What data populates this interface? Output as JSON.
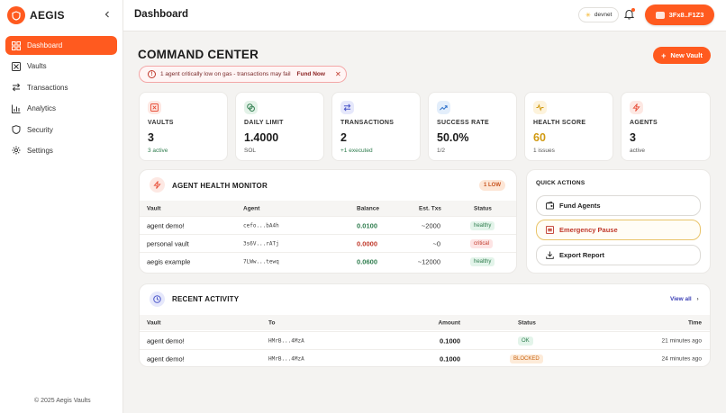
{
  "brand": {
    "name": "AEGIS"
  },
  "sidebar": {
    "items": [
      {
        "label": "Dashboard",
        "icon": "dashboard-icon",
        "active": true
      },
      {
        "label": "Vaults",
        "icon": "vault-icon"
      },
      {
        "label": "Transactions",
        "icon": "transfer-icon"
      },
      {
        "label": "Analytics",
        "icon": "chart-icon"
      },
      {
        "label": "Security",
        "icon": "shield-icon"
      },
      {
        "label": "Settings",
        "icon": "gear-icon"
      }
    ],
    "footer": "© 2025 Aegis Vaults"
  },
  "header": {
    "title": "Dashboard",
    "network": "devnet",
    "wallet": "3Fx8..F1Z3"
  },
  "main": {
    "title": "COMMAND CENTER",
    "new_vault_label": "New Vault",
    "alert": {
      "text": "1 agent critically low on gas - transactions may fail",
      "action": "Fund Now"
    }
  },
  "stats": [
    {
      "label": "VAULTS",
      "value": "3",
      "sub": "3 active",
      "icon": "vault-icon",
      "color": "#e8503a",
      "bg": "#fde8e3",
      "sub_color": "#2f7d4e"
    },
    {
      "label": "DAILY LIMIT",
      "value": "1.4000",
      "sub": "SOL",
      "icon": "coins-icon",
      "color": "#2f7d4e",
      "bg": "#e3f2e8",
      "sub_color": "#555555"
    },
    {
      "label": "TRANSACTIONS",
      "value": "2",
      "sub": "+1 executed",
      "icon": "transfer-icon",
      "color": "#4a56c9",
      "bg": "#e6e8fb",
      "sub_color": "#2f7d4e"
    },
    {
      "label": "SUCCESS RATE",
      "value": "50.0%",
      "sub": "1/2",
      "icon": "trend-up-icon",
      "color": "#2a6fc9",
      "bg": "#e3eefb",
      "sub_color": "#555555"
    },
    {
      "label": "HEALTH SCORE",
      "value": "60",
      "sub": "1 issues",
      "icon": "pulse-icon",
      "color": "#d19a12",
      "bg": "#fdf3dc",
      "sub_color": "#555555",
      "value_color": "#d19a12"
    },
    {
      "label": "AGENTS",
      "value": "3",
      "sub": "active",
      "icon": "bolt-icon",
      "color": "#e8503a",
      "bg": "#fde8e3",
      "sub_color": "#555555"
    }
  ],
  "health": {
    "title": "AGENT HEALTH MONITOR",
    "badge": "1 LOW",
    "columns": [
      "Vault",
      "Agent",
      "Balance",
      "Est. Txs",
      "Status"
    ],
    "rows": [
      {
        "vault": "agent demo!",
        "agent": "cefo...bA4h",
        "balance": "0.0100",
        "txs": "~2000",
        "status": "healthy",
        "balance_color": "#2f7d4e"
      },
      {
        "vault": "personal vault",
        "agent": "3s6V...rATj",
        "balance": "0.0000",
        "txs": "~0",
        "status": "critical",
        "balance_color": "#c0392b"
      },
      {
        "vault": "aegis example",
        "agent": "7LWw...tewq",
        "balance": "0.0600",
        "txs": "~12000",
        "status": "healthy",
        "balance_color": "#2f7d4e"
      }
    ]
  },
  "quick_actions": {
    "title": "QUICK ACTIONS",
    "items": [
      {
        "label": "Fund Agents",
        "icon": "wallet-icon"
      },
      {
        "label": "Emergency Pause",
        "icon": "pause-icon"
      },
      {
        "label": "Export Report",
        "icon": "download-icon"
      }
    ]
  },
  "activity": {
    "title": "RECENT ACTIVITY",
    "view_all": "View all",
    "columns": [
      "Vault",
      "To",
      "Amount",
      "Status",
      "Time"
    ],
    "rows": [
      {
        "vault": "agent demo!",
        "to": "HMrB...4MzA",
        "amount": "0.1000",
        "status": "OK",
        "time": "21 minutes ago"
      },
      {
        "vault": "agent demo!",
        "to": "HMrB...4MzA",
        "amount": "0.1000",
        "status": "BLOCKED",
        "time": "24 minutes ago"
      }
    ]
  }
}
